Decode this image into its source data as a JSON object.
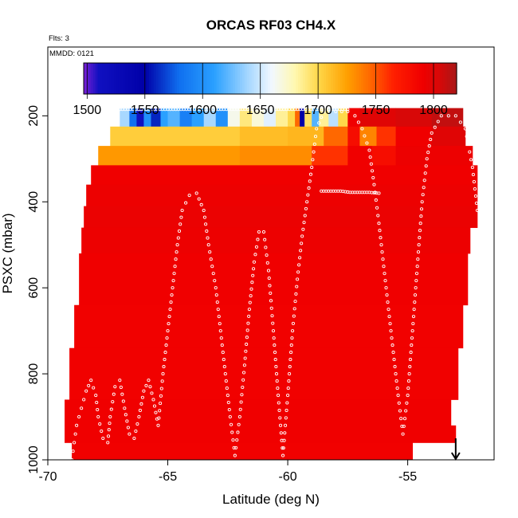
{
  "chart_data": {
    "type": "heatmap",
    "title": "ORCAS RF03 CH4.X",
    "note_flights": "Flts: 3",
    "note_date": "MMDD: 0121",
    "xlabel": "Latitude (deg N)",
    "ylabel": "PSXC (mbar)",
    "xlim": [
      -70,
      -51.4
    ],
    "ylim": [
      1000,
      40
    ],
    "y_reversed": true,
    "x_ticks": [
      -70,
      -65,
      -60,
      -55
    ],
    "y_ticks": [
      200,
      400,
      600,
      800,
      1000
    ],
    "grid": false,
    "colorbar": {
      "range": [
        1497,
        1820
      ],
      "ticks": [
        1500,
        1550,
        1600,
        1650,
        1700,
        1750,
        1800
      ],
      "stops": [
        {
          "v": 1497,
          "c": "#7a1fd6"
        },
        {
          "v": 1510,
          "c": "#1010c0"
        },
        {
          "v": 1550,
          "c": "#0000a8"
        },
        {
          "v": 1580,
          "c": "#1070f0"
        },
        {
          "v": 1610,
          "c": "#2aa0ff"
        },
        {
          "v": 1640,
          "c": "#a8d8ff"
        },
        {
          "v": 1660,
          "c": "#f2f8ff"
        },
        {
          "v": 1680,
          "c": "#fff8b0"
        },
        {
          "v": 1700,
          "c": "#ffd84a"
        },
        {
          "v": 1725,
          "c": "#ffa000"
        },
        {
          "v": 1745,
          "c": "#ff6800"
        },
        {
          "v": 1765,
          "c": "#ff2000"
        },
        {
          "v": 1790,
          "c": "#f00000"
        },
        {
          "v": 1805,
          "c": "#d80808"
        },
        {
          "v": 1820,
          "c": "#a81818"
        }
      ]
    },
    "layers": [
      {
        "p": [
          182,
          225
        ],
        "segments": [
          {
            "x": [
              -67.0,
              -66.6
            ],
            "v": 1640
          },
          {
            "x": [
              -66.6,
              -66.3
            ],
            "v": 1580
          },
          {
            "x": [
              -66.3,
              -66.0
            ],
            "v": 1510
          },
          {
            "x": [
              -66.0,
              -65.7
            ],
            "v": 1600
          },
          {
            "x": [
              -65.7,
              -65.3
            ],
            "v": 1560
          },
          {
            "x": [
              -65.3,
              -65.0
            ],
            "v": 1610
          },
          {
            "x": [
              -65.0,
              -64.5
            ],
            "v": 1620
          },
          {
            "x": [
              -64.5,
              -64.0
            ],
            "v": 1590
          },
          {
            "x": [
              -64.0,
              -63.5
            ],
            "v": 1610
          },
          {
            "x": [
              -63.5,
              -63.0
            ],
            "v": 1640
          },
          {
            "x": [
              -63.0,
              -62.5
            ],
            "v": 1600
          },
          {
            "x": [
              -62.5,
              -62.0
            ],
            "v": 1665
          },
          {
            "x": [
              -62.0,
              -61.5
            ],
            "v": 1690
          },
          {
            "x": [
              -61.5,
              -61.0
            ],
            "v": 1670
          },
          {
            "x": [
              -61.0,
              -60.5
            ],
            "v": 1655
          },
          {
            "x": [
              -60.5,
              -60.0
            ],
            "v": 1685
          },
          {
            "x": [
              -60.0,
              -59.7
            ],
            "v": 1700
          },
          {
            "x": [
              -59.7,
              -59.5
            ],
            "v": 1745
          },
          {
            "x": [
              -59.5,
              -59.3
            ],
            "v": 1550
          },
          {
            "x": [
              -59.3,
              -59.0
            ],
            "v": 1695
          },
          {
            "x": [
              -59.0,
              -58.7
            ],
            "v": 1620
          },
          {
            "x": [
              -58.7,
              -58.3
            ],
            "v": 1685
          },
          {
            "x": [
              -58.3,
              -57.9
            ],
            "v": 1645
          },
          {
            "x": [
              -57.9,
              -57.5
            ],
            "v": 1700
          },
          {
            "x": [
              -57.5,
              -57.0
            ],
            "v": 1790
          },
          {
            "x": [
              -57.0,
              -55.5
            ],
            "v": 1800
          },
          {
            "x": [
              -55.5,
              -54.0
            ],
            "v": 1805
          },
          {
            "x": [
              -54.0,
              -52.7
            ],
            "v": 1812
          }
        ]
      },
      {
        "p": [
          225,
          270
        ],
        "segments": [
          {
            "x": [
              -67.4,
              -62.0
            ],
            "v": 1705
          },
          {
            "x": [
              -62.0,
              -60.0
            ],
            "v": 1712
          },
          {
            "x": [
              -60.0,
              -58.5
            ],
            "v": 1715
          },
          {
            "x": [
              -58.5,
              -57.5
            ],
            "v": 1745
          },
          {
            "x": [
              -57.5,
              -57.0
            ],
            "v": 1780
          },
          {
            "x": [
              -57.0,
              -56.3
            ],
            "v": 1735
          },
          {
            "x": [
              -56.3,
              -55.5
            ],
            "v": 1760
          },
          {
            "x": [
              -55.5,
              -54.0
            ],
            "v": 1790
          },
          {
            "x": [
              -54.0,
              -52.6
            ],
            "v": 1800
          }
        ]
      },
      {
        "p": [
          270,
          315
        ],
        "segments": [
          {
            "x": [
              -67.9,
              -62.0
            ],
            "v": 1728
          },
          {
            "x": [
              -62.0,
              -59.0
            ],
            "v": 1732
          },
          {
            "x": [
              -59.0,
              -57.5
            ],
            "v": 1760
          },
          {
            "x": [
              -57.5,
              -56.5
            ],
            "v": 1790
          },
          {
            "x": [
              -56.5,
              -55.5
            ],
            "v": 1780
          },
          {
            "x": [
              -55.5,
              -52.3
            ],
            "v": 1792
          }
        ]
      },
      {
        "p": [
          315,
          360
        ],
        "segments": [
          {
            "x": [
              -68.2,
              -52.1
            ],
            "v": 1790
          }
        ]
      },
      {
        "p": [
          360,
          410
        ],
        "segments": [
          {
            "x": [
              -68.4,
              -52.1
            ],
            "v": 1792
          }
        ]
      },
      {
        "p": [
          410,
          460
        ],
        "segments": [
          {
            "x": [
              -68.5,
              -52.1
            ],
            "v": 1793
          }
        ]
      },
      {
        "p": [
          460,
          520
        ],
        "segments": [
          {
            "x": [
              -68.6,
              -52.4
            ],
            "v": 1792
          }
        ]
      },
      {
        "p": [
          520,
          640
        ],
        "segments": [
          {
            "x": [
              -68.7,
              -52.5
            ],
            "v": 1790
          }
        ]
      },
      {
        "p": [
          640,
          740
        ],
        "segments": [
          {
            "x": [
              -68.9,
              -52.7
            ],
            "v": 1789
          }
        ]
      },
      {
        "p": [
          740,
          860
        ],
        "segments": [
          {
            "x": [
              -69.1,
              -52.9
            ],
            "v": 1789
          }
        ]
      },
      {
        "p": [
          860,
          920
        ],
        "segments": [
          {
            "x": [
              -69.3,
              -53.2
            ],
            "v": 1790
          }
        ]
      },
      {
        "p": [
          920,
          960
        ],
        "segments": [
          {
            "x": [
              -69.3,
              -53.0
            ],
            "v": 1790
          }
        ]
      },
      {
        "p": [
          960,
          1000
        ],
        "segments": [
          {
            "x": [
              -69.0,
              -54.8
            ],
            "v": 1789
          }
        ]
      }
    ],
    "flight_track": [
      [
        -69.0,
        1000
      ],
      [
        -68.9,
        960
      ],
      [
        -68.8,
        920
      ],
      [
        -68.6,
        880
      ],
      [
        -68.4,
        840
      ],
      [
        -68.2,
        815
      ],
      [
        -68.0,
        850
      ],
      [
        -67.9,
        900
      ],
      [
        -67.7,
        950
      ],
      [
        -67.5,
        960
      ],
      [
        -67.4,
        900
      ],
      [
        -67.2,
        830
      ],
      [
        -67.0,
        815
      ],
      [
        -66.8,
        880
      ],
      [
        -66.6,
        940
      ],
      [
        -66.4,
        950
      ],
      [
        -66.2,
        900
      ],
      [
        -66.0,
        840
      ],
      [
        -65.8,
        815
      ],
      [
        -65.6,
        860
      ],
      [
        -65.4,
        920
      ],
      [
        -65.2,
        800
      ],
      [
        -65.0,
        700
      ],
      [
        -64.8,
        600
      ],
      [
        -64.6,
        500
      ],
      [
        -64.4,
        420
      ],
      [
        -64.1,
        385
      ],
      [
        -63.8,
        380
      ],
      [
        -63.5,
        420
      ],
      [
        -63.3,
        500
      ],
      [
        -63.0,
        600
      ],
      [
        -62.8,
        700
      ],
      [
        -62.6,
        800
      ],
      [
        -62.4,
        900
      ],
      [
        -62.2,
        990
      ],
      [
        -62.0,
        900
      ],
      [
        -61.8,
        780
      ],
      [
        -61.6,
        650
      ],
      [
        -61.4,
        540
      ],
      [
        -61.2,
        470
      ],
      [
        -61.0,
        470
      ],
      [
        -60.8,
        560
      ],
      [
        -60.6,
        700
      ],
      [
        -60.4,
        850
      ],
      [
        -60.2,
        990
      ],
      [
        -60.0,
        850
      ],
      [
        -59.8,
        700
      ],
      [
        -59.6,
        580
      ],
      [
        -59.4,
        480
      ],
      [
        -59.2,
        400
      ],
      [
        -59.0,
        320
      ],
      [
        -58.8,
        230
      ],
      [
        -58.5,
        190
      ],
      [
        -58.0,
        190
      ],
      [
        -57.5,
        190
      ],
      [
        -57.2,
        200
      ],
      [
        -56.9,
        230
      ],
      [
        -56.6,
        280
      ],
      [
        -56.4,
        360
      ],
      [
        -56.2,
        450
      ],
      [
        -56.0,
        550
      ],
      [
        -55.8,
        650
      ],
      [
        -55.6,
        750
      ],
      [
        -55.4,
        850
      ],
      [
        -55.2,
        940
      ],
      [
        -55.0,
        850
      ],
      [
        -54.8,
        700
      ],
      [
        -54.6,
        550
      ],
      [
        -54.4,
        400
      ],
      [
        -54.2,
        300
      ],
      [
        -54.0,
        240
      ],
      [
        -53.6,
        200
      ],
      [
        -53.0,
        200
      ],
      [
        -52.6,
        230
      ],
      [
        -52.3,
        320
      ],
      [
        -52.1,
        420
      ]
    ],
    "flight_track_upper": [
      [
        -67.0,
        185
      ],
      [
        -66.0,
        185
      ],
      [
        -65.0,
        185
      ],
      [
        -64.0,
        185
      ],
      [
        -63.0,
        185
      ],
      [
        -62.0,
        185
      ],
      [
        -61.0,
        185
      ],
      [
        -60.5,
        185
      ],
      [
        -58.8,
        185
      ],
      [
        -58.4,
        185
      ],
      [
        -57.5,
        185
      ]
    ],
    "flight_track_mid": [
      [
        -58.6,
        375
      ],
      [
        -58.2,
        375
      ],
      [
        -57.8,
        375
      ],
      [
        -57.4,
        378
      ],
      [
        -57.0,
        378
      ],
      [
        -56.6,
        378
      ],
      [
        -56.2,
        380
      ]
    ],
    "marker": {
      "x": -53.0,
      "p": 1000,
      "arrow_top_p": 950
    }
  }
}
